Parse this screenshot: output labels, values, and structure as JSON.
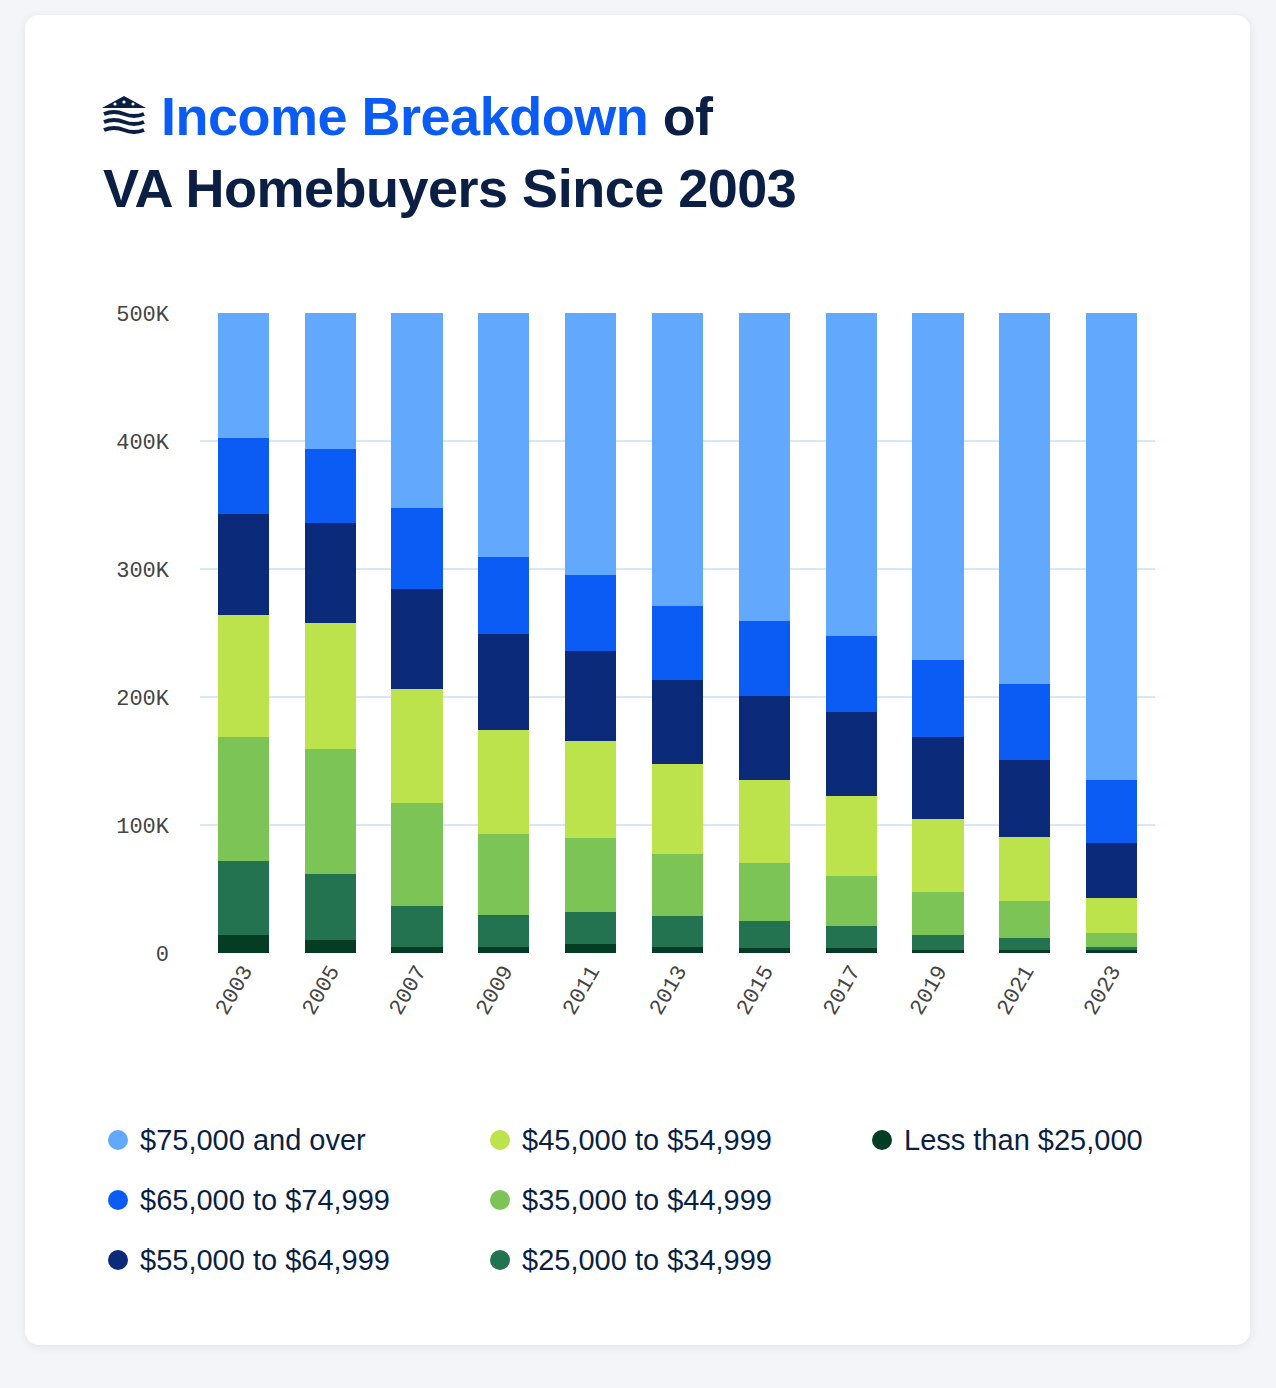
{
  "chart_data": {
    "type": "bar",
    "title": "Income Breakdown of VA Homebuyers Since 2003",
    "stacked": true,
    "grid": true,
    "categories": [
      "2003",
      "2005",
      "2007",
      "2009",
      "2011",
      "2013",
      "2015",
      "2017",
      "2019",
      "2021",
      "2023"
    ],
    "series": [
      {
        "name": "$75,000 and over",
        "color": "#62a8fd",
        "values": [
          98000,
          106000,
          152000,
          191000,
          205000,
          229000,
          241000,
          252000,
          271000,
          290000,
          365000
        ]
      },
      {
        "name": "$65,000 to $74,999",
        "color": "#0a5cf5",
        "values": [
          59000,
          58000,
          64000,
          60000,
          59000,
          58000,
          58000,
          60000,
          60000,
          59000,
          49000
        ]
      },
      {
        "name": "$55,000 to $64,999",
        "color": "#0b2a7a",
        "values": [
          79000,
          78000,
          78000,
          75000,
          70000,
          65000,
          66000,
          65000,
          64000,
          60000,
          43000
        ]
      },
      {
        "name": "$45,000 to $54,999",
        "color": "#bce34b",
        "values": [
          95000,
          99000,
          89000,
          81000,
          76000,
          71000,
          65000,
          63000,
          57000,
          50000,
          27000
        ]
      },
      {
        "name": "$35,000 to $44,999",
        "color": "#7dc457",
        "values": [
          97000,
          97000,
          80000,
          63000,
          58000,
          48000,
          45000,
          39000,
          34000,
          29000,
          11000
        ]
      },
      {
        "name": "$25,000 to $34,999",
        "color": "#237350",
        "values": [
          58000,
          52000,
          32000,
          25000,
          25000,
          24000,
          21000,
          17000,
          12000,
          10000,
          3000
        ]
      },
      {
        "name": "Less than $25,000",
        "color": "#053d24",
        "values": [
          14000,
          10000,
          5000,
          5000,
          7000,
          5000,
          4000,
          4000,
          2000,
          2000,
          2000
        ]
      }
    ],
    "ylim": [
      0,
      500000
    ],
    "yticks": [
      0,
      {
        "value": 100000,
        "label": "100K"
      },
      {
        "value": 200000,
        "label": "200K"
      },
      {
        "value": 300000,
        "label": "300K"
      },
      {
        "value": 400000,
        "label": "400K"
      },
      {
        "value": 500000,
        "label": "500K"
      }
    ]
  }
}
